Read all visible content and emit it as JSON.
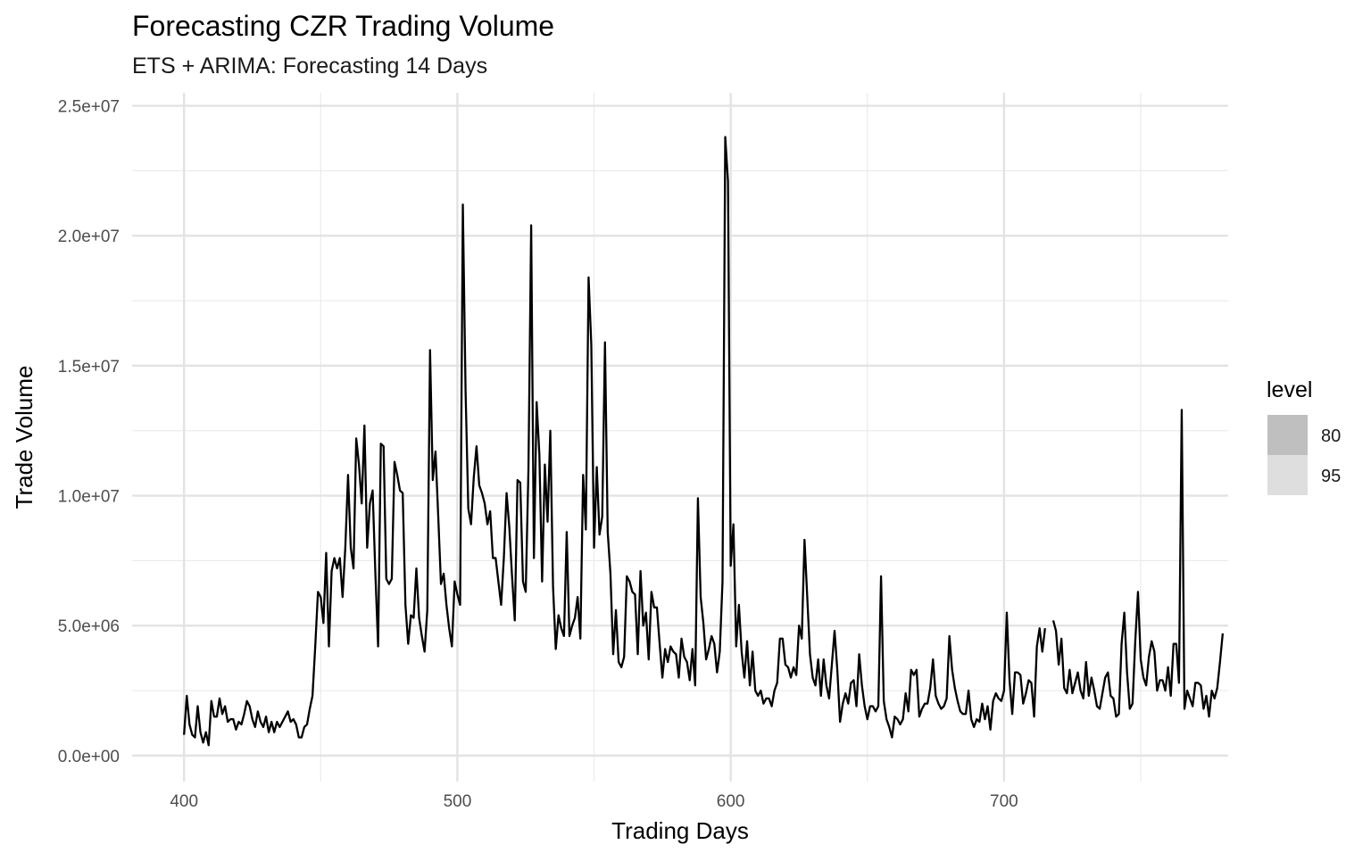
{
  "chart_data": {
    "type": "line",
    "title": "Forecasting CZR Trading Volume",
    "subtitle": "ETS + ARIMA: Forecasting 14 Days",
    "xlabel": "Trading Days",
    "ylabel": "Trade Volume",
    "xlim": [
      381,
      782
    ],
    "ylim": [
      -1000000,
      25500000
    ],
    "x_ticks": [
      400,
      500,
      600,
      700
    ],
    "x_tick_labels": [
      "400",
      "500",
      "600",
      "700"
    ],
    "x_minor_ticks": [
      450,
      550,
      650,
      750
    ],
    "y_ticks": [
      0,
      5000000,
      10000000,
      15000000,
      20000000,
      25000000
    ],
    "y_tick_labels": [
      "0.0e+00",
      "5.0e+06",
      "1.0e+07",
      "1.5e+07",
      "2.0e+07",
      "2.5e+07"
    ],
    "y_minor_ticks": [
      2500000,
      7500000,
      12500000,
      17500000,
      22500000
    ],
    "grid": true,
    "line_color": "#000000",
    "legend": {
      "title": "level",
      "placement": "right",
      "entries": [
        {
          "label": "80",
          "color": "#bfbfbf"
        },
        {
          "label": "95",
          "color": "#dedede"
        }
      ]
    },
    "series": [
      {
        "x_start": 400,
        "x_step": 1,
        "values": [
          800000,
          2300000,
          1200000,
          800000,
          700000,
          1900000,
          900000,
          500000,
          900000,
          400000,
          2100000,
          1500000,
          1500000,
          2200000,
          1600000,
          1900000,
          1300000,
          1400000,
          1400000,
          1000000,
          1300000,
          1200000,
          1600000,
          2100000,
          1900000,
          1400000,
          1100000,
          1700000,
          1300000,
          1100000,
          1500000,
          900000,
          1300000,
          900000,
          1300000,
          1100000,
          1300000,
          1500000,
          1700000,
          1300000,
          1400000,
          1200000,
          700000,
          700000,
          1100000,
          1200000,
          1800000,
          2300000,
          4200000,
          6300000,
          6100000,
          5100000,
          7800000,
          4200000,
          7100000,
          7600000,
          7200000,
          7600000,
          6100000,
          8000000,
          10800000,
          8000000,
          7200000,
          12200000,
          11200000,
          9700000,
          12700000,
          8000000,
          9700000,
          10200000,
          7000000,
          4200000,
          12000000,
          11900000,
          6800000,
          6600000,
          6800000,
          11300000,
          10800000,
          10200000,
          10100000,
          5800000,
          4300000,
          5400000,
          5300000,
          7200000,
          5300000,
          4600000,
          4000000,
          5600000,
          15600000,
          10600000,
          11700000,
          9200000,
          6600000,
          7000000,
          5800000,
          4900000,
          4200000,
          6700000,
          6200000,
          5800000,
          21200000,
          14000000,
          9500000,
          8900000,
          10700000,
          11900000,
          10400000,
          10100000,
          9700000,
          8900000,
          9400000,
          7600000,
          7600000,
          6700000,
          5800000,
          7600000,
          10100000,
          8800000,
          6900000,
          5200000,
          10600000,
          10500000,
          6700000,
          6300000,
          11000000,
          20400000,
          7600000,
          13600000,
          11600000,
          6700000,
          11200000,
          9000000,
          12500000,
          6500000,
          4100000,
          5400000,
          4900000,
          4600000,
          8600000,
          4600000,
          5000000,
          5300000,
          6100000,
          4500000,
          10800000,
          8700000,
          18400000,
          15800000,
          8000000,
          11100000,
          8500000,
          9200000,
          15900000,
          8600000,
          7000000,
          3900000,
          5600000,
          3600000,
          3400000,
          3800000,
          6900000,
          6700000,
          6300000,
          6200000,
          3900000,
          7100000,
          5000000,
          5500000,
          3700000,
          6300000,
          5700000,
          5700000,
          4300000,
          3000000,
          4100000,
          3600000,
          4200000,
          4000000,
          3900000,
          3000000,
          4500000,
          3800000,
          3600000,
          2900000,
          4100000,
          2700000,
          9900000,
          6100000,
          5100000,
          3700000,
          4100000,
          4600000,
          4300000,
          3200000,
          4000000,
          6700000,
          23800000,
          22100000,
          7300000,
          8900000,
          4200000,
          5800000,
          4000000,
          3000000,
          4400000,
          2700000,
          4000000,
          2500000,
          2300000,
          2500000,
          2000000,
          2200000,
          2200000,
          1900000,
          2500000,
          2800000,
          4500000,
          4500000,
          3500000,
          3400000,
          3000000,
          3400000,
          3100000,
          5000000,
          4500000,
          8300000,
          6100000,
          3900000,
          3000000,
          2700000,
          3700000,
          2300000,
          3700000,
          2700000,
          2200000,
          3500000,
          4800000,
          3300000,
          1300000,
          2000000,
          2400000,
          2000000,
          2800000,
          2900000,
          1900000,
          3900000,
          2700000,
          1900000,
          1400000,
          1900000,
          1900000,
          1700000,
          1900000,
          6900000,
          2100000,
          1400000,
          1100000,
          700000,
          1500000,
          1400000,
          1200000,
          1400000,
          2400000,
          1700000,
          3300000,
          3100000,
          3300000,
          1500000,
          1800000,
          2000000,
          2000000,
          2600000,
          3700000,
          2300000,
          2000000,
          1800000,
          1900000,
          2200000,
          4600000,
          3300000,
          2600000,
          2100000,
          1700000,
          1600000,
          1600000,
          2500000,
          1400000,
          1100000,
          1400000,
          1300000,
          2000000,
          1400000,
          1900000,
          1000000,
          2100000,
          2400000,
          2200000,
          2100000,
          2500000,
          5500000,
          2900000,
          1600000,
          3200000,
          3200000,
          3100000,
          2000000,
          2400000,
          2900000,
          2800000,
          1500000,
          4200000,
          4900000,
          4000000,
          4900000,
          null,
          null,
          5200000,
          4800000,
          3500000,
          4500000,
          2600000,
          2400000,
          3300000,
          2400000,
          2800000,
          3200000,
          2500000,
          2200000,
          3600000,
          2300000,
          3000000,
          2500000,
          1900000,
          1800000,
          2400000,
          3000000,
          3200000,
          2300000,
          2200000,
          1500000,
          1600000,
          4300000,
          5500000,
          3200000,
          1800000,
          2000000,
          4400000,
          6300000,
          3700000,
          3000000,
          2700000,
          3800000,
          4400000,
          4000000,
          2500000,
          2900000,
          2900000,
          2500000,
          3400000,
          2300000,
          4300000,
          4300000,
          2800000,
          13300000,
          1800000,
          2500000,
          2200000,
          1900000,
          2800000,
          2800000,
          2700000,
          1800000,
          2300000,
          1500000,
          2500000,
          2200000,
          2600000,
          3600000,
          4700000
        ]
      }
    ]
  }
}
